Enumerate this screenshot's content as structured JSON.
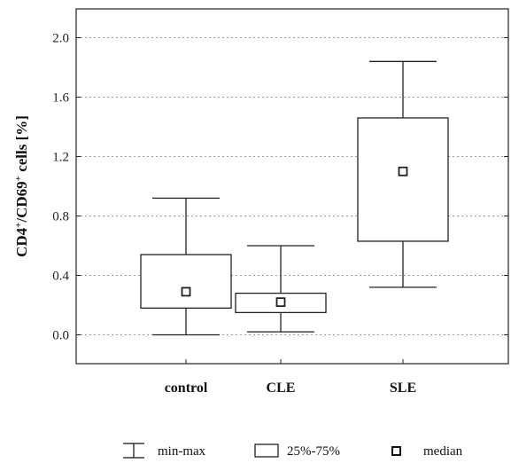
{
  "chart_data": {
    "type": "box",
    "ylabel_main": "CD4",
    "ylabel_sup1": "+",
    "ylabel_mid": "/CD69",
    "ylabel_sup2": "+",
    "ylabel_end": " cells [%]",
    "ylim": [
      -0.2,
      2.2
    ],
    "yticks": [
      0.0,
      0.4,
      0.8,
      1.2,
      1.6,
      2.0
    ],
    "ytick_labels": [
      "0.0",
      "0.4",
      "0.8",
      "1.2",
      "1.6",
      "2.0"
    ],
    "grid": true,
    "legend_position": "bottom",
    "categories": [
      "control",
      "CLE",
      "SLE"
    ],
    "boxes": [
      {
        "min": 0.0,
        "q1": 0.18,
        "median": 0.29,
        "q3": 0.54,
        "max": 0.92
      },
      {
        "min": 0.02,
        "q1": 0.15,
        "median": 0.22,
        "q3": 0.28,
        "max": 0.6
      },
      {
        "min": 0.32,
        "q1": 0.63,
        "median": 1.1,
        "q3": 1.46,
        "max": 1.84
      }
    ],
    "legend": {
      "minmax": "min-max",
      "iqr": "25%-75%",
      "median": "median"
    }
  }
}
